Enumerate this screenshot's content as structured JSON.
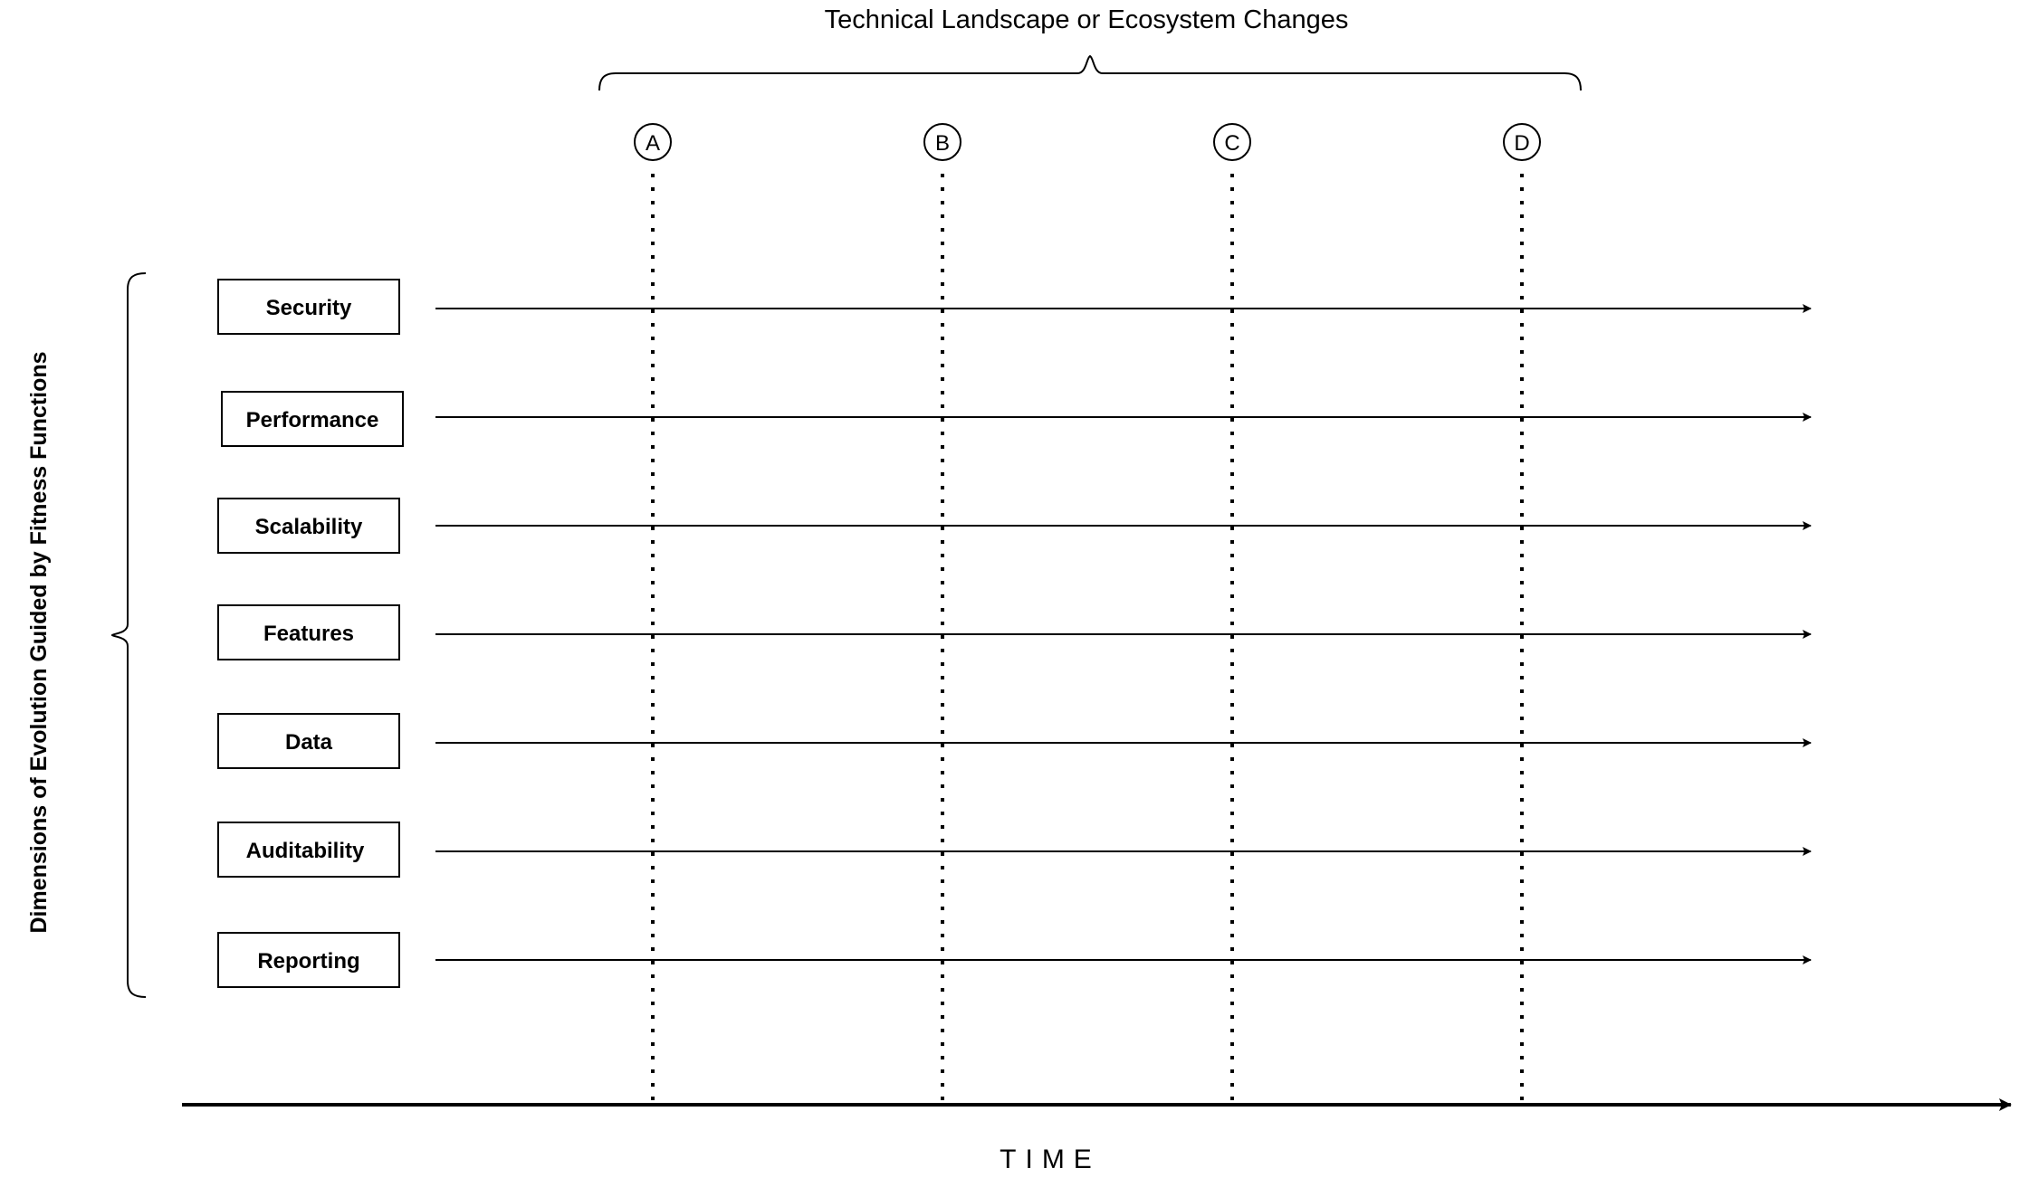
{
  "diagram": {
    "top_label": "Technical Landscape or Ecosystem Changes",
    "side_label": "Dimensions of Evolution Guided by Fitness Functions",
    "time_label": "TIME",
    "markers": [
      "A",
      "B",
      "C",
      "D"
    ],
    "dimensions": [
      "Security",
      "Performance",
      "Scalability",
      "Features",
      "Data",
      "Auditability",
      "Reporting"
    ]
  }
}
